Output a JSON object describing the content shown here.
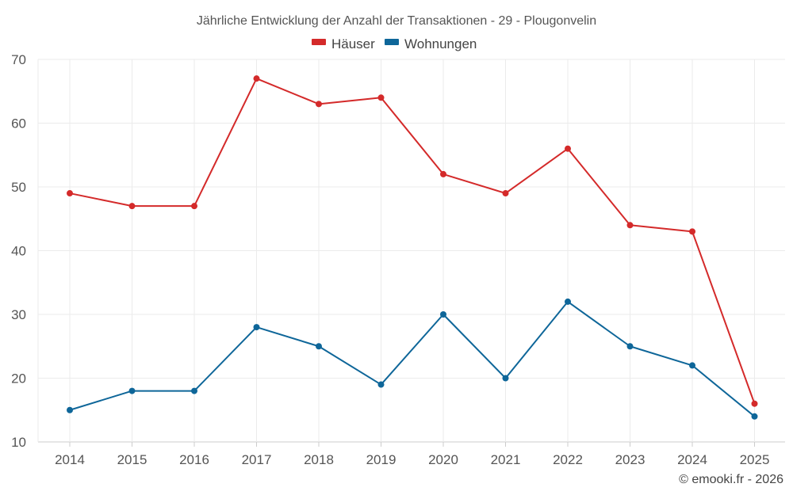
{
  "chart_data": {
    "type": "line",
    "title": "Jährliche Entwicklung der Anzahl der Transaktionen - 29 - Plougonvelin",
    "categories": [
      "2014",
      "2015",
      "2016",
      "2017",
      "2018",
      "2019",
      "2020",
      "2021",
      "2022",
      "2023",
      "2024",
      "2025"
    ],
    "series": [
      {
        "name": "Häuser",
        "color": "#d42a2a",
        "values": [
          49,
          47,
          47,
          67,
          63,
          64,
          52,
          49,
          56,
          44,
          43,
          16
        ]
      },
      {
        "name": "Wohnungen",
        "color": "#0e6699",
        "values": [
          15,
          18,
          18,
          28,
          25,
          19,
          30,
          20,
          32,
          25,
          22,
          14
        ]
      }
    ],
    "ylim": [
      10,
      70
    ],
    "yticks": [
      10,
      20,
      30,
      40,
      50,
      60,
      70
    ],
    "xlabel": "",
    "ylabel": "",
    "grid": true,
    "legend": "top-center"
  },
  "credit": "© emooki.fr - 2026"
}
